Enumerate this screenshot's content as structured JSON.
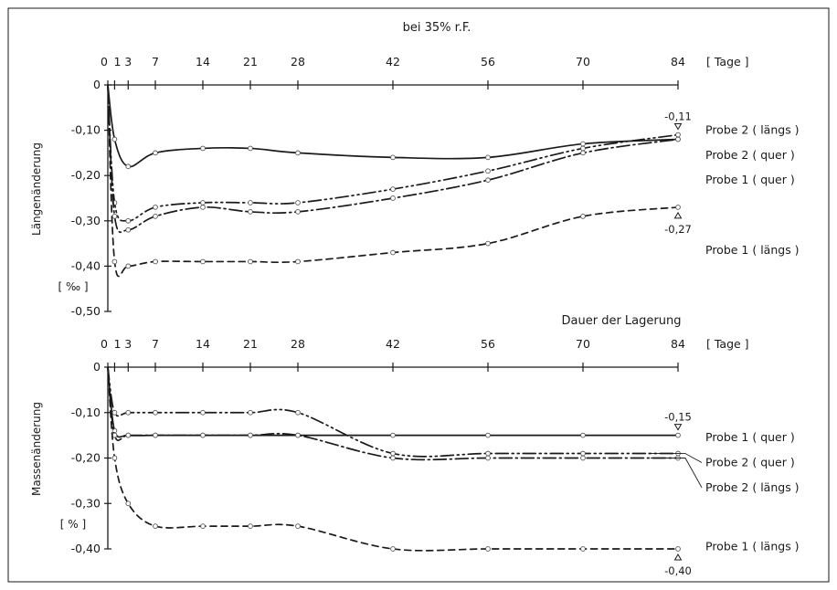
{
  "chart_data": {
    "title": "bei 35% r.F.",
    "x_unit_label": "[ Tage ]",
    "x_ticks": [
      0,
      1,
      3,
      7,
      14,
      21,
      28,
      42,
      56,
      70,
      84
    ],
    "shared_xlabel": "Dauer der Lagerung",
    "charts": [
      {
        "type": "line",
        "ylabel": "Längenänderung",
        "yunit": "[ ‰ ]",
        "ylim": [
          -0.5,
          0
        ],
        "y_ticks": [
          "0",
          "-0,10",
          "-0,20",
          "-0,30",
          "-0,40",
          "-0,50"
        ],
        "y_tick_values": [
          0,
          -0.1,
          -0.2,
          -0.3,
          -0.4,
          -0.5
        ],
        "series": [
          {
            "name": "Probe 2 (längs)",
            "dash": "14 4 2 4 2 4",
            "x": [
              0,
              1,
              3,
              7,
              14,
              21,
              28,
              42,
              56,
              70,
              84
            ],
            "y": [
              0,
              -0.26,
              -0.3,
              -0.27,
              -0.26,
              -0.26,
              -0.26,
              -0.23,
              -0.19,
              -0.14,
              -0.11
            ]
          },
          {
            "name": "Probe 2 (quer)",
            "dash": "",
            "x": [
              0,
              1,
              3,
              7,
              14,
              21,
              28,
              42,
              56,
              70,
              84
            ],
            "y": [
              0,
              -0.12,
              -0.18,
              -0.15,
              -0.14,
              -0.14,
              -0.15,
              -0.16,
              -0.16,
              -0.13,
              -0.12
            ]
          },
          {
            "name": "Probe 1 (quer)",
            "dash": "14 4 2 4",
            "x": [
              0,
              1,
              3,
              7,
              14,
              21,
              28,
              42,
              56,
              70,
              84
            ],
            "y": [
              0,
              -0.29,
              -0.32,
              -0.29,
              -0.27,
              -0.28,
              -0.28,
              -0.25,
              -0.21,
              -0.15,
              -0.12
            ]
          },
          {
            "name": "Probe 1 (längs)",
            "dash": "7 5",
            "x": [
              0,
              1,
              3,
              7,
              14,
              21,
              28,
              42,
              56,
              70,
              84
            ],
            "y": [
              0,
              -0.39,
              -0.4,
              -0.39,
              -0.39,
              -0.39,
              -0.39,
              -0.37,
              -0.35,
              -0.29,
              -0.27
            ]
          }
        ],
        "legend": [
          {
            "prefix": "Probe 2",
            "tag": "( längs )",
            "y": -0.1
          },
          {
            "prefix": "Probe 2",
            "tag": "( quer )",
            "y": -0.155
          },
          {
            "prefix": "Probe 1",
            "tag": "( quer )",
            "y": -0.21
          },
          {
            "prefix": "Probe 1",
            "tag": "( längs )",
            "y": -0.365
          }
        ],
        "annotations": [
          {
            "text": "-0,11",
            "x": 84,
            "y": -0.11,
            "dir": "down",
            "pos": "above"
          },
          {
            "text": "-0,27",
            "x": 84,
            "y": -0.27,
            "dir": "up",
            "pos": "below"
          }
        ]
      },
      {
        "type": "line",
        "ylabel": "Massenänderung",
        "yunit": "[ % ]",
        "ylim": [
          -0.4,
          0
        ],
        "y_ticks": [
          "0",
          "-0,10",
          "-0,20",
          "-0,30",
          "-0,40"
        ],
        "y_tick_values": [
          0,
          -0.1,
          -0.2,
          -0.3,
          -0.4
        ],
        "series": [
          {
            "name": "Probe 1 (quer)",
            "dash": "",
            "x": [
              0,
              1,
              3,
              7,
              14,
              21,
              28,
              42,
              56,
              70,
              84
            ],
            "y": [
              0,
              -0.14,
              -0.15,
              -0.15,
              -0.15,
              -0.15,
              -0.15,
              -0.15,
              -0.15,
              -0.15,
              -0.15
            ]
          },
          {
            "name": "Probe 2 (quer)",
            "dash": "14 4 2 4 2 4",
            "x": [
              0,
              1,
              3,
              7,
              14,
              21,
              28,
              42,
              56,
              70,
              84
            ],
            "y": [
              0,
              -0.1,
              -0.1,
              -0.1,
              -0.1,
              -0.1,
              -0.1,
              -0.19,
              -0.19,
              -0.19,
              -0.19
            ]
          },
          {
            "name": "Probe 2 (längs)",
            "dash": "14 4 2 4",
            "x": [
              0,
              1,
              3,
              7,
              14,
              21,
              28,
              42,
              56,
              70,
              84
            ],
            "y": [
              0,
              -0.15,
              -0.15,
              -0.15,
              -0.15,
              -0.15,
              -0.15,
              -0.2,
              -0.2,
              -0.2,
              -0.2
            ]
          },
          {
            "name": "Probe 1 (längs)",
            "dash": "7 5",
            "x": [
              0,
              1,
              3,
              7,
              14,
              21,
              28,
              42,
              56,
              70,
              84
            ],
            "y": [
              0,
              -0.2,
              -0.3,
              -0.35,
              -0.35,
              -0.35,
              -0.35,
              -0.4,
              -0.4,
              -0.4,
              -0.4
            ]
          }
        ],
        "legend": [
          {
            "prefix": "Probe 1",
            "tag": "( quer )",
            "y": -0.155,
            "leader": false
          },
          {
            "prefix": "Probe 2",
            "tag": "( quer )",
            "y": -0.21,
            "leader": true,
            "leader_to": -0.19
          },
          {
            "prefix": "Probe 2",
            "tag": "( längs )",
            "y": -0.265,
            "leader": true,
            "leader_to": -0.2
          },
          {
            "prefix": "Probe 1",
            "tag": "( längs )",
            "y": -0.395,
            "leader": false
          }
        ],
        "annotations": [
          {
            "text": "-0,15",
            "x": 84,
            "y": -0.15,
            "dir": "down",
            "pos": "above"
          },
          {
            "text": "-0,40",
            "x": 84,
            "y": -0.4,
            "dir": "up",
            "pos": "below"
          }
        ]
      }
    ]
  }
}
